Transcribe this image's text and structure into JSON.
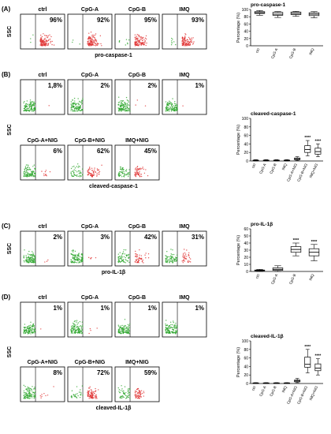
{
  "panels": [
    {
      "letter": "(A)",
      "ylabel": "SSC",
      "marker": "pro-caspase-1",
      "cells": [
        {
          "label": "ctrl",
          "percent": "96%"
        },
        {
          "label": "CpG-A",
          "percent": "92%"
        },
        {
          "label": "CpG-B",
          "percent": "95%"
        },
        {
          "label": "IMQ",
          "percent": "93%"
        }
      ]
    },
    {
      "letter": "(B)",
      "ylabel": "SSC",
      "marker": "cleaved-caspase-1",
      "cells": [
        {
          "label": "ctrl",
          "percent": "1,8%"
        },
        {
          "label": "CpG-A",
          "percent": "2%"
        },
        {
          "label": "CpG-B",
          "percent": "2%"
        },
        {
          "label": "IMQ",
          "percent": "1%"
        },
        {
          "label": "CpG-A+NIG",
          "percent": "6%"
        },
        {
          "label": "CpG-B+NIG",
          "percent": "62%"
        },
        {
          "label": "IMQ+NIG",
          "percent": "45%"
        }
      ]
    },
    {
      "letter": "(C)",
      "ylabel": "SSC",
      "marker": "pro-IL-1β",
      "cells": [
        {
          "label": "ctrl",
          "percent": "2%"
        },
        {
          "label": "CpG-A",
          "percent": "3%"
        },
        {
          "label": "CpG-B",
          "percent": "42%"
        },
        {
          "label": "IMQ",
          "percent": "31%"
        }
      ]
    },
    {
      "letter": "(D)",
      "ylabel": "SSC",
      "marker": "cleaved-IL-1β",
      "cells": [
        {
          "label": "ctrl",
          "percent": "1%"
        },
        {
          "label": "CpG-A",
          "percent": "1%"
        },
        {
          "label": "CpG-B",
          "percent": "1%"
        },
        {
          "label": "IMQ",
          "percent": "1%"
        },
        {
          "label": "CpG-A+NIG",
          "percent": "8%"
        },
        {
          "label": "CpG-B+NIG",
          "percent": "72%"
        },
        {
          "label": "IMQ+NIG",
          "percent": "59%"
        }
      ]
    }
  ],
  "chart_data": [
    {
      "type": "box",
      "title": "pro-caspase-1",
      "ylabel": "Percentage (%)",
      "ylim": [
        0,
        100
      ],
      "yticks": [
        0,
        20,
        40,
        60,
        80,
        100
      ],
      "categories": [
        "ctrl",
        "CpG-A",
        "CpG-B",
        "IMQ"
      ],
      "boxes": [
        {
          "min": 84,
          "q1": 89,
          "median": 91,
          "q3": 94,
          "max": 97
        },
        {
          "min": 78,
          "q1": 84,
          "median": 87,
          "q3": 92,
          "max": 94
        },
        {
          "min": 81,
          "q1": 86,
          "median": 89,
          "q3": 93,
          "max": 95
        },
        {
          "min": 77,
          "q1": 83,
          "median": 87,
          "q3": 91,
          "max": 94
        }
      ],
      "significance": [
        "",
        "",
        "",
        ""
      ]
    },
    {
      "type": "box",
      "title": "cleaved-caspase-1",
      "ylabel": "Percentage (%)",
      "ylim": [
        0,
        100
      ],
      "yticks": [
        0,
        20,
        40,
        60,
        80,
        100
      ],
      "categories": [
        "ctrl",
        "CpG-A",
        "CpG-B",
        "IMQ",
        "CpG-A+NIG",
        "CpG-B+NIG",
        "IMQ+NIG"
      ],
      "boxes": [
        {
          "min": 0,
          "q1": 1,
          "median": 1.5,
          "q3": 2,
          "max": 3
        },
        {
          "min": 0,
          "q1": 1,
          "median": 1.5,
          "q3": 2,
          "max": 3
        },
        {
          "min": 0,
          "q1": 1,
          "median": 1.5,
          "q3": 2,
          "max": 3
        },
        {
          "min": 0,
          "q1": 1,
          "median": 1.5,
          "q3": 2,
          "max": 3
        },
        {
          "min": 1,
          "q1": 3,
          "median": 5,
          "q3": 7,
          "max": 10
        },
        {
          "min": 12,
          "q1": 20,
          "median": 27,
          "q3": 36,
          "max": 48
        },
        {
          "min": 10,
          "q1": 16,
          "median": 22,
          "q3": 30,
          "max": 40
        }
      ],
      "significance": [
        "",
        "",
        "",
        "",
        "",
        "****",
        "****"
      ]
    },
    {
      "type": "box",
      "title": "pro-IL-1β",
      "ylabel": "Percentage (%)",
      "ylim": [
        0,
        60
      ],
      "yticks": [
        0,
        10,
        20,
        30,
        40,
        50,
        60
      ],
      "categories": [
        "ctrl",
        "CpG-A",
        "CpG-B",
        "IMQ"
      ],
      "boxes": [
        {
          "min": 0,
          "q1": 1,
          "median": 1.5,
          "q3": 2,
          "max": 3
        },
        {
          "min": 0,
          "q1": 1.5,
          "median": 3,
          "q3": 5,
          "max": 8
        },
        {
          "min": 22,
          "q1": 27,
          "median": 31,
          "q3": 35,
          "max": 40
        },
        {
          "min": 15,
          "q1": 22,
          "median": 27,
          "q3": 32,
          "max": 38
        }
      ],
      "significance": [
        "",
        "",
        "****",
        "****"
      ]
    },
    {
      "type": "box",
      "title": "cleaved-IL-1β",
      "ylabel": "Percentage (%)",
      "ylim": [
        0,
        100
      ],
      "yticks": [
        0,
        20,
        40,
        60,
        80,
        100
      ],
      "categories": [
        "ctrl",
        "CpG-A",
        "CpG-B",
        "IMQ",
        "CpG-A+NIG",
        "CpG-B+NIG",
        "IMQ+NIG"
      ],
      "boxes": [
        {
          "min": 0,
          "q1": 0.5,
          "median": 1,
          "q3": 1.5,
          "max": 2
        },
        {
          "min": 0,
          "q1": 0.5,
          "median": 1,
          "q3": 1.5,
          "max": 2
        },
        {
          "min": 0,
          "q1": 0.5,
          "median": 1,
          "q3": 1.5,
          "max": 2
        },
        {
          "min": 0,
          "q1": 0.5,
          "median": 1,
          "q3": 1.5,
          "max": 2
        },
        {
          "min": 2,
          "q1": 4,
          "median": 6,
          "q3": 8,
          "max": 12
        },
        {
          "min": 25,
          "q1": 38,
          "median": 45,
          "q3": 62,
          "max": 80
        },
        {
          "min": 20,
          "q1": 30,
          "median": 36,
          "q3": 46,
          "max": 58
        }
      ],
      "significance": [
        "",
        "",
        "",
        "",
        "",
        "****",
        "****"
      ]
    }
  ]
}
